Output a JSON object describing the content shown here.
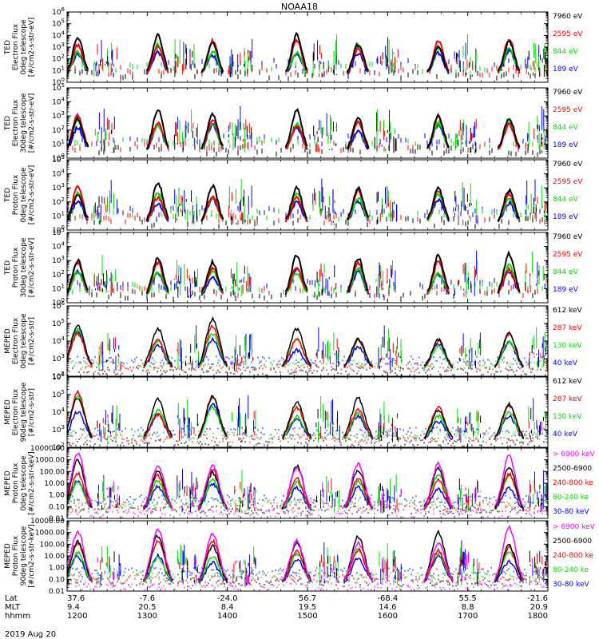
{
  "figure_title": "NOAA18",
  "date_label": "2019 Aug 20",
  "ephemeris": {
    "row_labels": [
      "Lat",
      "MLT",
      "hhmm"
    ],
    "columns": [
      {
        "lat": "37.6",
        "mlt": "9.4",
        "hhmm": "1200"
      },
      {
        "lat": "-7.6",
        "mlt": "20.5",
        "hhmm": "1300"
      },
      {
        "lat": "-24.0",
        "mlt": "8.4",
        "hhmm": "1400"
      },
      {
        "lat": "56.7",
        "mlt": "19.5",
        "hhmm": "1500"
      },
      {
        "lat": "-68.4",
        "mlt": "14.6",
        "hhmm": "1600"
      },
      {
        "lat": "55.5",
        "mlt": "8.8",
        "hhmm": "1700"
      },
      {
        "lat": "-21.6",
        "mlt": "20.9",
        "hhmm": "1800"
      }
    ]
  },
  "chart_data": [
    {
      "type": "scatter",
      "ylabel": [
        "TED",
        "Electron Flux",
        "0deg telescope",
        "[#/cm2-s-str-eV]"
      ],
      "yscale": "log",
      "ylim": [
        1,
        1000000
      ],
      "ytick_labels": [
        "10^0",
        "10^1",
        "10^2",
        "10^3",
        "10^4",
        "10^5",
        "10^6"
      ],
      "legend": [
        {
          "label": "7960 eV",
          "color": "#000000"
        },
        {
          "label": "2595 eV",
          "color": "#ff0000"
        },
        {
          "label": "844 eV",
          "color": "#00dd00"
        },
        {
          "label": "189 eV",
          "color": "#0000ff"
        }
      ]
    },
    {
      "type": "scatter",
      "ylabel": [
        "TED",
        "Electron Flux",
        "30deg telescope",
        "[#/cm2-s-str-eV]"
      ],
      "yscale": "log",
      "ylim": [
        1,
        100000
      ],
      "ytick_labels": [
        "10^0",
        "10^1",
        "10^2",
        "10^3",
        "10^4",
        "10^5"
      ],
      "legend": [
        {
          "label": "7960 eV",
          "color": "#000000"
        },
        {
          "label": "2595 eV",
          "color": "#ff0000"
        },
        {
          "label": "844 eV",
          "color": "#00dd00"
        },
        {
          "label": "189 eV",
          "color": "#0000ff"
        }
      ]
    },
    {
      "type": "scatter",
      "ylabel": [
        "TED",
        "Proton Flux",
        "0deg telescope",
        "[#/cm2-s-str-eV]"
      ],
      "yscale": "log",
      "ylim": [
        1,
        100000
      ],
      "ytick_labels": [
        "10^0",
        "10^1",
        "10^2",
        "10^3",
        "10^4",
        "10^5"
      ],
      "legend": [
        {
          "label": "7960 eV",
          "color": "#000000"
        },
        {
          "label": "2595 eV",
          "color": "#ff0000"
        },
        {
          "label": "844 eV",
          "color": "#00dd00"
        },
        {
          "label": "189 eV",
          "color": "#0000ff"
        }
      ]
    },
    {
      "type": "scatter",
      "ylabel": [
        "TED",
        "Proton Flux",
        "30deg telescope",
        "[#/cm2-s-str-eV]"
      ],
      "yscale": "log",
      "ylim": [
        1,
        100000
      ],
      "ytick_labels": [
        "10^0",
        "10^1",
        "10^2",
        "10^3",
        "10^4",
        "10^5"
      ],
      "legend": [
        {
          "label": "7960 eV",
          "color": "#000000"
        },
        {
          "label": "2595 eV",
          "color": "#ff0000"
        },
        {
          "label": "844 eV",
          "color": "#00dd00"
        },
        {
          "label": "189 eV",
          "color": "#0000ff"
        }
      ]
    },
    {
      "type": "scatter",
      "ylabel": [
        "MEPED",
        "Electron Flux",
        "0deg telescope",
        "[#/cm2-s-str]"
      ],
      "yscale": "log",
      "ylim": [
        100,
        1000000
      ],
      "ytick_labels": [
        "10^2",
        "10^3",
        "10^4",
        "10^5",
        "10^6"
      ],
      "legend": [
        {
          "label": "612 keV",
          "color": "#000000"
        },
        {
          "label": "287 keV",
          "color": "#ff0000"
        },
        {
          "label": "130 keV",
          "color": "#00dd00"
        },
        {
          "label": "40 keV",
          "color": "#0000ff"
        }
      ]
    },
    {
      "type": "scatter",
      "ylabel": [
        "MEPED",
        "Electron Flux",
        "90deg telescope",
        "[#/cm2-s-str]"
      ],
      "yscale": "log",
      "ylim": [
        100,
        1000000
      ],
      "ytick_labels": [
        "10^2",
        "10^3",
        "10^4",
        "10^5",
        "10^6"
      ],
      "legend": [
        {
          "label": "612 keV",
          "color": "#000000"
        },
        {
          "label": "287 keV",
          "color": "#ff0000"
        },
        {
          "label": "130 keV",
          "color": "#00dd00"
        },
        {
          "label": "40 keV",
          "color": "#0000ff"
        }
      ]
    },
    {
      "type": "scatter",
      "ylabel": [
        "MEPED",
        "Proton Flux",
        "0deg telescope",
        "[#/cm2-s-str-keV]"
      ],
      "yscale": "log",
      "ylim": [
        0.01,
        10000
      ],
      "ytick_labels": [
        "0.01",
        "0.10",
        "1.00",
        "10.00",
        "100.00",
        "1000.00",
        "10000.00"
      ],
      "legend": [
        {
          "label": "> 6900 keV",
          "color": "#ff00ff"
        },
        {
          "label": "2500-6900",
          "color": "#000000"
        },
        {
          "label": "240-800 ke",
          "color": "#ff0000"
        },
        {
          "label": "80-240 ke",
          "color": "#00dd00"
        },
        {
          "label": "30-80 keV",
          "color": "#0000ff"
        }
      ]
    },
    {
      "type": "scatter",
      "ylabel": [
        "MEPED",
        "Proton Flux",
        "90deg telescope",
        "[#/cm2-s-str-keV]"
      ],
      "yscale": "log",
      "ylim": [
        0.01,
        10000
      ],
      "ytick_labels": [
        "0.01",
        "0.10",
        "1.00",
        "10.00",
        "100.00",
        "1000.00",
        "10000.00"
      ],
      "legend": [
        {
          "label": "> 6900 keV",
          "color": "#ff00ff"
        },
        {
          "label": "2500-6900",
          "color": "#000000"
        },
        {
          "label": "240-800 ke",
          "color": "#ff0000"
        },
        {
          "label": "80-240 ke",
          "color": "#00dd00"
        },
        {
          "label": "30-80 keV",
          "color": "#0000ff"
        }
      ]
    }
  ]
}
